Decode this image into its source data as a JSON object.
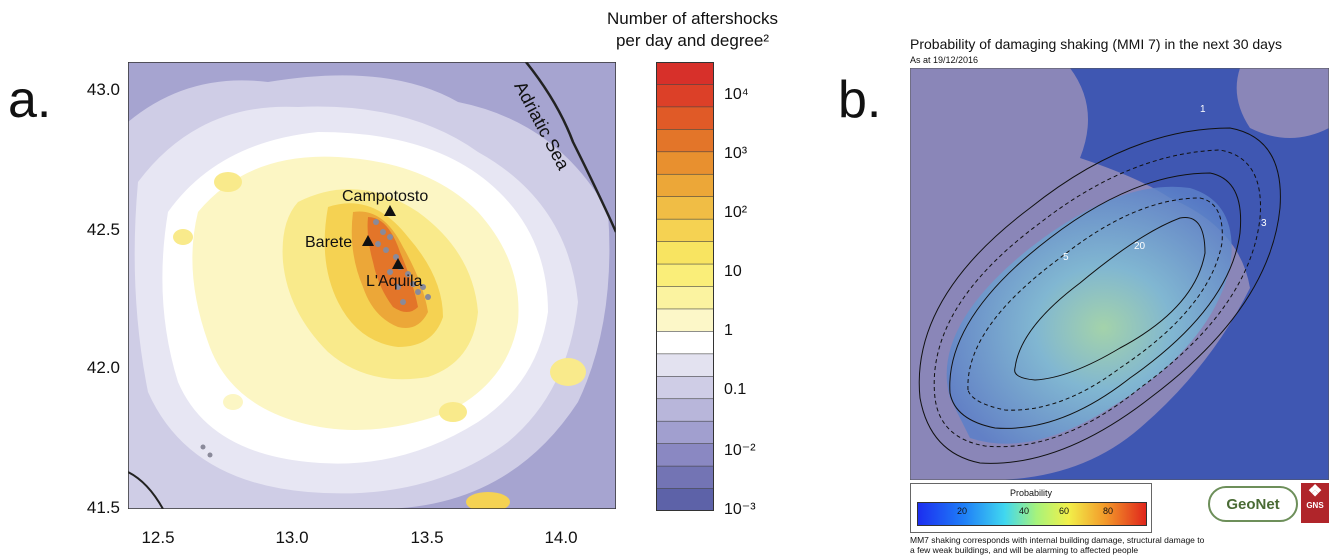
{
  "panel_a": {
    "letter": "a.",
    "y_ticks": [
      "43.0",
      "42.5",
      "42.0",
      "41.5"
    ],
    "x_ticks": [
      "12.5",
      "13.0",
      "13.5",
      "14.0"
    ],
    "places": [
      "Campotosto",
      "Barete",
      "L'Aquila"
    ],
    "sea_label": "Adriatic Sea",
    "colorbar": {
      "title_line1": "Number of aftershocks",
      "title_line2": "per day and degree²",
      "labels": [
        "10⁴",
        "10³",
        "10²",
        "10",
        "1",
        "0.1",
        "10⁻²",
        "10⁻³"
      ],
      "colors": [
        "#d7302a",
        "#dc4028",
        "#e05a27",
        "#e37529",
        "#e8902f",
        "#eca738",
        "#f0bd45",
        "#f5d252",
        "#f8e461",
        "#faee79",
        "#fbf3a0",
        "#fcf7c8",
        "#ffffff",
        "#e3e2f0",
        "#cfcde6",
        "#b8b6da",
        "#a19fcf",
        "#8a88c2",
        "#7374b4",
        "#5d62a8"
      ]
    }
  },
  "panel_b": {
    "letter": "b.",
    "title": "Probability of damaging shaking (MMI 7)  in the next 30 days",
    "subtitle": "As at 19/12/2016",
    "contour_labels": [
      "1",
      "3",
      "5",
      "20"
    ],
    "legend_title": "Probability",
    "legend_values": [
      "20",
      "40",
      "60",
      "80"
    ],
    "caption": "MM7 shaking corresponds with internal building damage, structural damage to a few weak buildings, and will be alarming to affected people",
    "logo_geonet": "GeoNet",
    "logo_gns": "GNS"
  }
}
